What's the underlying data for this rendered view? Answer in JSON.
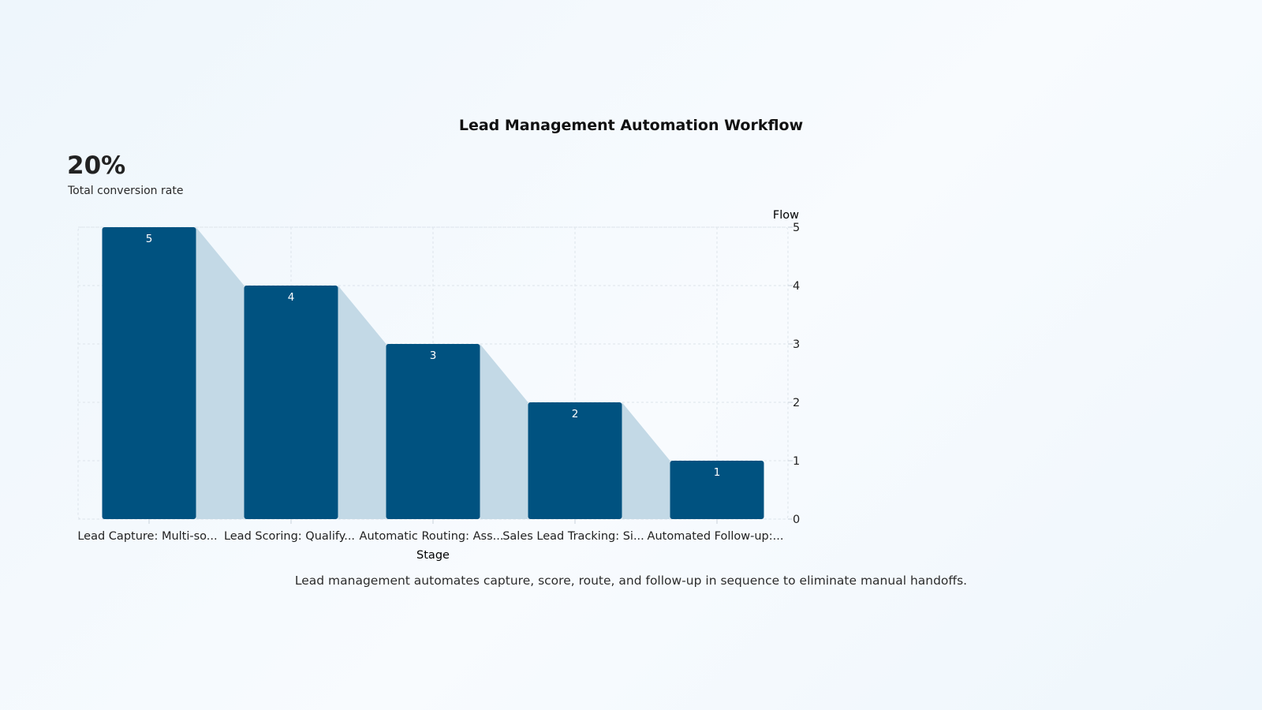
{
  "title": "Lead Management Automation Workflow",
  "kpi": {
    "value": "20%",
    "label": "Total conversion rate"
  },
  "description": "Lead management automates capture, score, route, and follow-up in sequence to eliminate manual handoffs.",
  "colors": {
    "bar": "#005280",
    "connector": "#c3d9e6",
    "grid": "#dde4ea",
    "axis_text": "#222222",
    "bar_label": "#ffffff"
  },
  "chart_data": {
    "type": "bar",
    "categories": [
      "Lead Capture: Multi-so...",
      "Lead Scoring: Qualify...",
      "Automatic Routing: Ass...",
      "Sales Lead Tracking: Si...",
      "Automated Follow-up:..."
    ],
    "values": [
      5,
      4,
      3,
      2,
      1
    ],
    "xlabel": "Stage",
    "ylabel": "Flow",
    "ylim": [
      0,
      5
    ],
    "yticks": [
      0,
      1,
      2,
      3,
      4,
      5
    ],
    "y_axis_side": "right",
    "grid": true,
    "data_labels": true,
    "connectors": true
  }
}
